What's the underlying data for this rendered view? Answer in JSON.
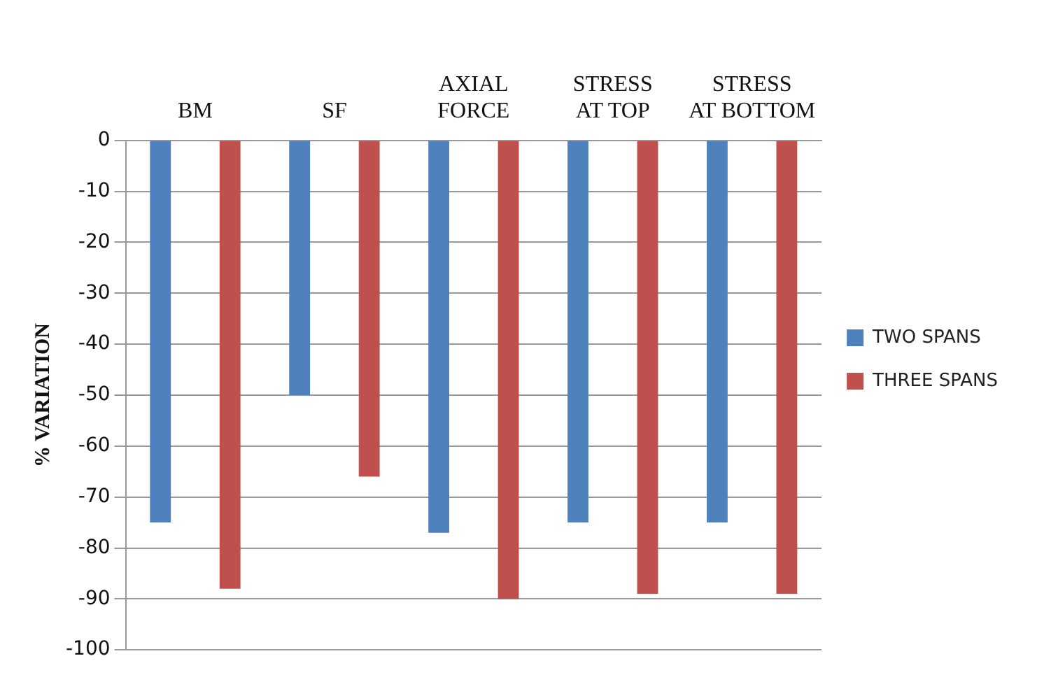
{
  "chart_data": {
    "type": "bar",
    "categories": [
      "BM",
      "SF",
      "AXIAL FORCE",
      "STRESS AT TOP",
      "STRESS AT BOTTOM"
    ],
    "ylabel": "% VARIATION",
    "series": [
      {
        "name": "TWO SPANS",
        "color": "#4f81bd",
        "values": [
          -75,
          -50,
          -77,
          -75,
          -75
        ]
      },
      {
        "name": "THREE SPANS",
        "color": "#c0504d",
        "values": [
          -88,
          -66,
          -90,
          -89,
          -89
        ]
      }
    ],
    "ylim": [
      -100,
      0
    ],
    "yticks": [
      0,
      -10,
      -20,
      -30,
      -40,
      -50,
      -60,
      -70,
      -80,
      -90,
      -100
    ],
    "grid": "y",
    "legend": "right"
  }
}
